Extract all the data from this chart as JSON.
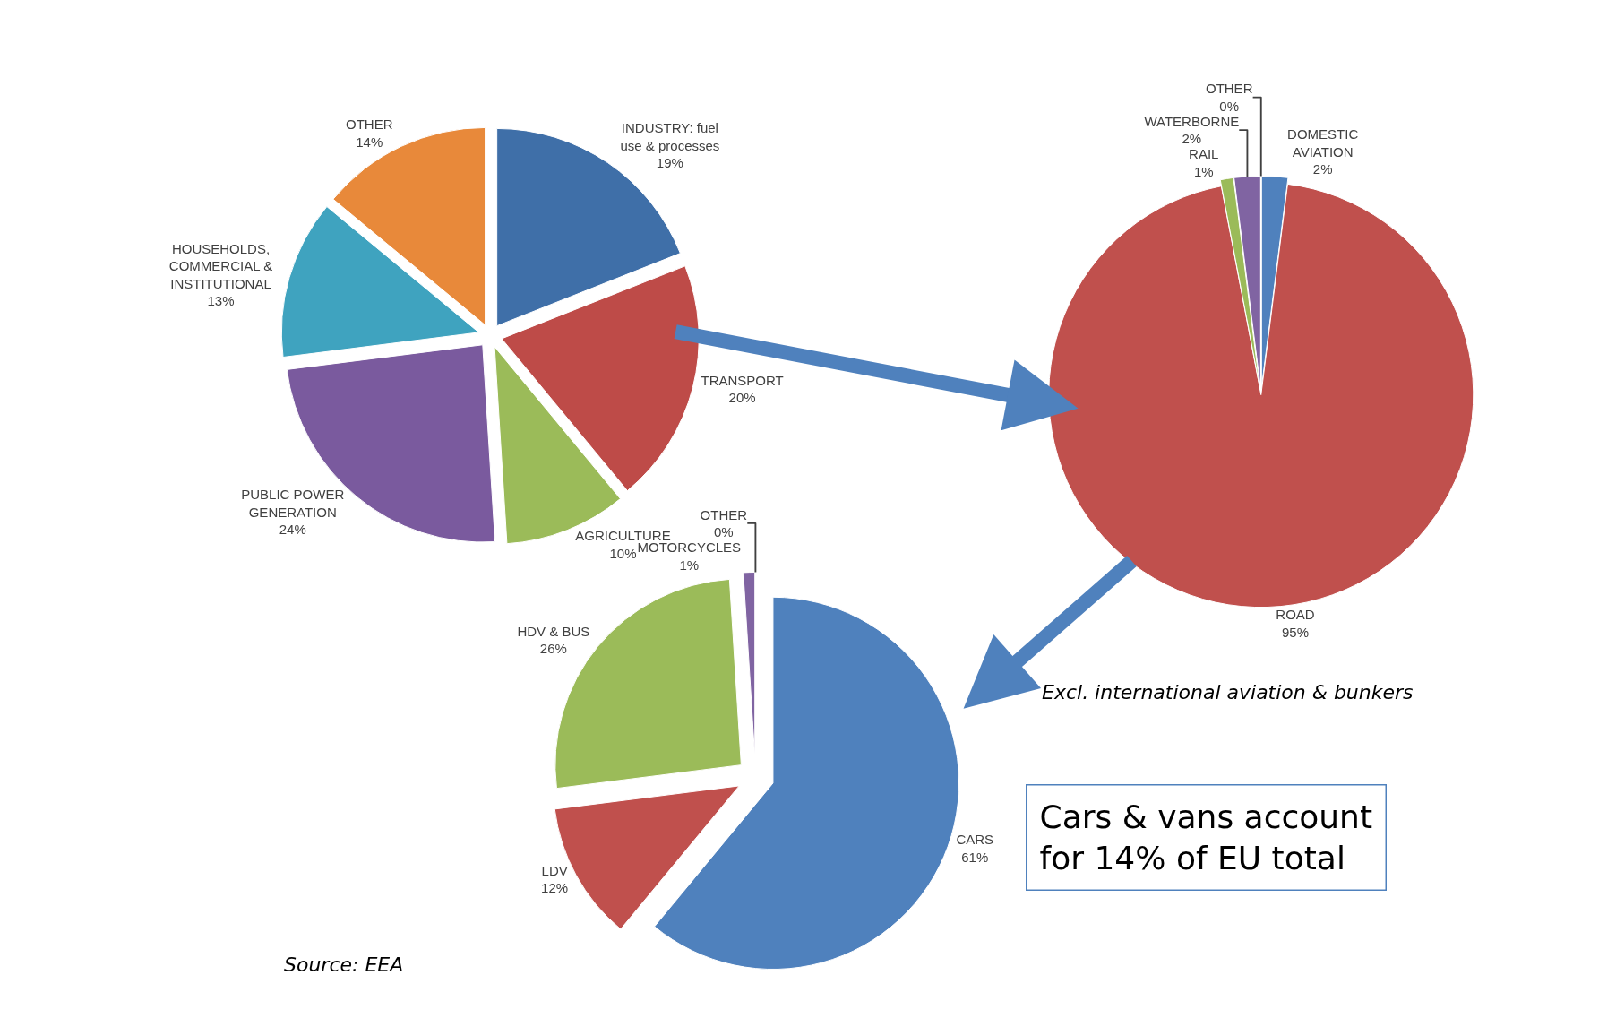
{
  "chart_data": [
    {
      "type": "pie",
      "categories": [
        "INDUSTRY: fuel use & processes",
        "TRANSPORT",
        "AGRICULTURE",
        "PUBLIC POWER GENERATION",
        "HOUSEHOLDS, COMMERCIAL & INSTITUTIONAL",
        "OTHER"
      ],
      "values": [
        19,
        20,
        10,
        24,
        13,
        14
      ],
      "value_labels": [
        "19%",
        "20%",
        "10%",
        "24%",
        "13%",
        "14%"
      ],
      "colors": [
        "#3f6fa8",
        "#be4b48",
        "#9bbb59",
        "#7a5a9e",
        "#3fa3bf",
        "#e8893a"
      ],
      "legend": false
    },
    {
      "type": "pie",
      "categories": [
        "DOMESTIC AVIATION",
        "ROAD",
        "RAIL",
        "WATERBORNE",
        "OTHER"
      ],
      "values": [
        2,
        95,
        1,
        2,
        0
      ],
      "value_labels": [
        "2%",
        "95%",
        "1%",
        "2%",
        "0%"
      ],
      "colors": [
        "#4f81bd",
        "#c0504d",
        "#9bbb59",
        "#8064a2",
        "#4bacc6"
      ],
      "legend": false,
      "annotations": [
        "Excl. international aviation & bunkers",
        "Cars & vans account for 14% of EU total"
      ]
    },
    {
      "type": "pie",
      "categories": [
        "CARS",
        "LDV",
        "HDV & BUS",
        "MOTORCYCLES",
        "OTHER"
      ],
      "values": [
        61,
        12,
        26,
        1,
        0
      ],
      "value_labels": [
        "61%",
        "12%",
        "26%",
        "1%",
        "0%"
      ],
      "colors": [
        "#4f81bd",
        "#c0504d",
        "#9bbb59",
        "#8064a2",
        "#4bacc6"
      ],
      "legend": false,
      "annotations": [
        "Source: EEA"
      ]
    }
  ]
}
